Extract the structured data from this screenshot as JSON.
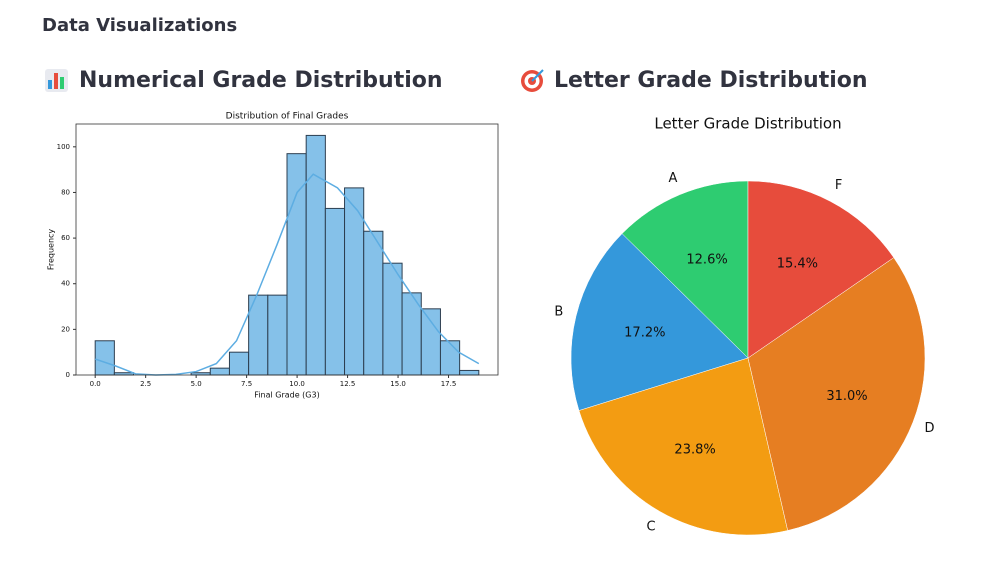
{
  "page": {
    "title": "Data Visualizations",
    "sections": [
      "Numerical Grade Distribution",
      "Letter Grade Distribution"
    ]
  },
  "chart_data": [
    {
      "type": "histogram",
      "title": "Distribution of Final Grades",
      "xlabel": "Final Grade (G3)",
      "ylabel": "Frequency",
      "bins": [
        0,
        0.95,
        1.9,
        2.85,
        3.8,
        4.75,
        5.7,
        6.65,
        7.6,
        8.55,
        9.5,
        10.45,
        11.4,
        12.35,
        13.3,
        14.25,
        15.2,
        16.15,
        17.1,
        18.05,
        19
      ],
      "counts": [
        15,
        1,
        0,
        0,
        0,
        1,
        3,
        10,
        35,
        35,
        97,
        105,
        73,
        82,
        63,
        49,
        36,
        29,
        15,
        2
      ],
      "color": "#85c1e9",
      "edgecolor": "#2c3e50",
      "kde": {
        "color": "#5dade2",
        "x": [
          0,
          1,
          2,
          3,
          4,
          5,
          6,
          7,
          8,
          9,
          10,
          10.8,
          12,
          13,
          14,
          15,
          16,
          17,
          18,
          19
        ],
        "values": [
          7,
          4,
          0.5,
          0,
          0.3,
          1.5,
          5,
          15,
          35,
          57,
          80,
          88,
          82,
          72,
          58,
          44,
          31,
          19,
          10,
          5
        ]
      },
      "xlim": [
        -0.95,
        19.95
      ],
      "ylim": [
        0,
        110
      ],
      "xticks": [
        {
          "value": 0,
          "label": "0.0"
        },
        {
          "value": 2.5,
          "label": "2.5"
        },
        {
          "value": 5,
          "label": "5.0"
        },
        {
          "value": 7.5,
          "label": "7.5"
        },
        {
          "value": 10,
          "label": "10.0"
        },
        {
          "value": 12.5,
          "label": "12.5"
        },
        {
          "value": 15,
          "label": "15.0"
        },
        {
          "value": 17.5,
          "label": "17.5"
        }
      ],
      "yticks": [
        0,
        20,
        40,
        60,
        80,
        100
      ]
    },
    {
      "type": "pie",
      "title": "Letter Grade Distribution",
      "categories": [
        "A",
        "B",
        "C",
        "D",
        "F"
      ],
      "values": [
        12.6,
        17.2,
        23.8,
        31.0,
        15.4
      ],
      "value_labels": [
        "12.6%",
        "17.2%",
        "23.8%",
        "31.0%",
        "15.4%"
      ],
      "colors": [
        "#2ecc71",
        "#3498db",
        "#f39c12",
        "#e67e22",
        "#e74c3c"
      ],
      "startangle": 90
    }
  ]
}
